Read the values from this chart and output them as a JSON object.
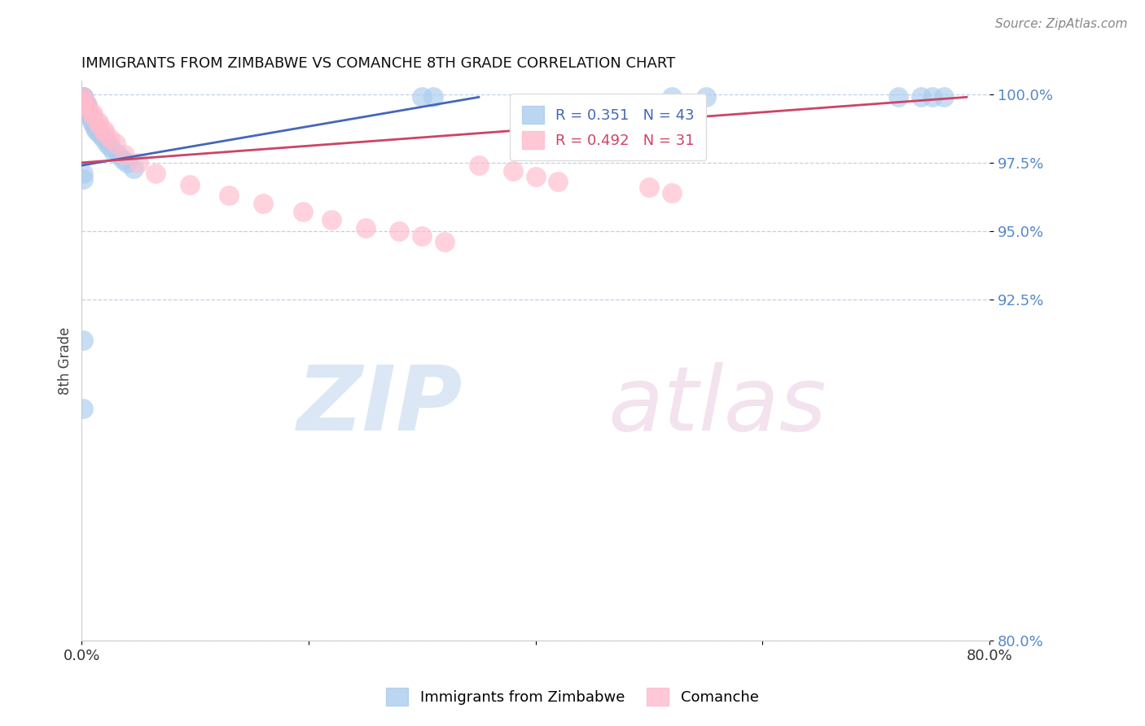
{
  "title": "IMMIGRANTS FROM ZIMBABWE VS COMANCHE 8TH GRADE CORRELATION CHART",
  "source": "Source: ZipAtlas.com",
  "xlabel_legend_1": "Immigrants from Zimbabwe",
  "xlabel_legend_2": "Comanche",
  "ylabel": "8th Grade",
  "xlim": [
    0.0,
    0.8
  ],
  "ylim": [
    0.8,
    1.005
  ],
  "ytick_vals": [
    1.0,
    0.975,
    0.95,
    0.925,
    0.8
  ],
  "ytick_labels": [
    "100.0%",
    "97.5%",
    "95.0%",
    "92.5%",
    "80.0%"
  ],
  "r_blue": 0.351,
  "n_blue": 43,
  "r_pink": 0.492,
  "n_pink": 31,
  "blue_color": "#AACCEE",
  "pink_color": "#FFBBCC",
  "blue_line_color": "#4466BB",
  "pink_line_color": "#CC4466",
  "blue_x": [
    0.001,
    0.001,
    0.001,
    0.001,
    0.001,
    0.001,
    0.001,
    0.001,
    0.003,
    0.003,
    0.003,
    0.005,
    0.005,
    0.005,
    0.007,
    0.007,
    0.009,
    0.009,
    0.011,
    0.011,
    0.013,
    0.015,
    0.017,
    0.019,
    0.022,
    0.025,
    0.028,
    0.032,
    0.036,
    0.04,
    0.046,
    0.3,
    0.31,
    0.52,
    0.55,
    0.72,
    0.74,
    0.75,
    0.76,
    0.001,
    0.001,
    0.001,
    0.001
  ],
  "blue_y": [
    0.999,
    0.999,
    0.999,
    0.999,
    0.999,
    0.998,
    0.998,
    0.998,
    0.997,
    0.997,
    0.996,
    0.996,
    0.995,
    0.994,
    0.993,
    0.992,
    0.991,
    0.99,
    0.989,
    0.988,
    0.987,
    0.986,
    0.985,
    0.984,
    0.982,
    0.981,
    0.979,
    0.978,
    0.976,
    0.975,
    0.973,
    0.999,
    0.999,
    0.999,
    0.999,
    0.999,
    0.999,
    0.999,
    0.999,
    0.971,
    0.969,
    0.91,
    0.885
  ],
  "pink_x": [
    0.001,
    0.001,
    0.001,
    0.005,
    0.005,
    0.01,
    0.01,
    0.015,
    0.015,
    0.02,
    0.02,
    0.025,
    0.03,
    0.038,
    0.05,
    0.065,
    0.095,
    0.13,
    0.16,
    0.195,
    0.22,
    0.25,
    0.28,
    0.3,
    0.32,
    0.35,
    0.38,
    0.4,
    0.42,
    0.5,
    0.52
  ],
  "pink_y": [
    0.999,
    0.998,
    0.997,
    0.996,
    0.995,
    0.993,
    0.992,
    0.99,
    0.989,
    0.987,
    0.986,
    0.984,
    0.982,
    0.978,
    0.975,
    0.971,
    0.967,
    0.963,
    0.96,
    0.957,
    0.954,
    0.951,
    0.95,
    0.948,
    0.946,
    0.974,
    0.972,
    0.97,
    0.968,
    0.966,
    0.964
  ],
  "blue_line_x": [
    0.0,
    0.35
  ],
  "blue_line_y": [
    0.974,
    0.999
  ],
  "pink_line_x": [
    0.0,
    0.78
  ],
  "pink_line_y": [
    0.975,
    0.999
  ]
}
